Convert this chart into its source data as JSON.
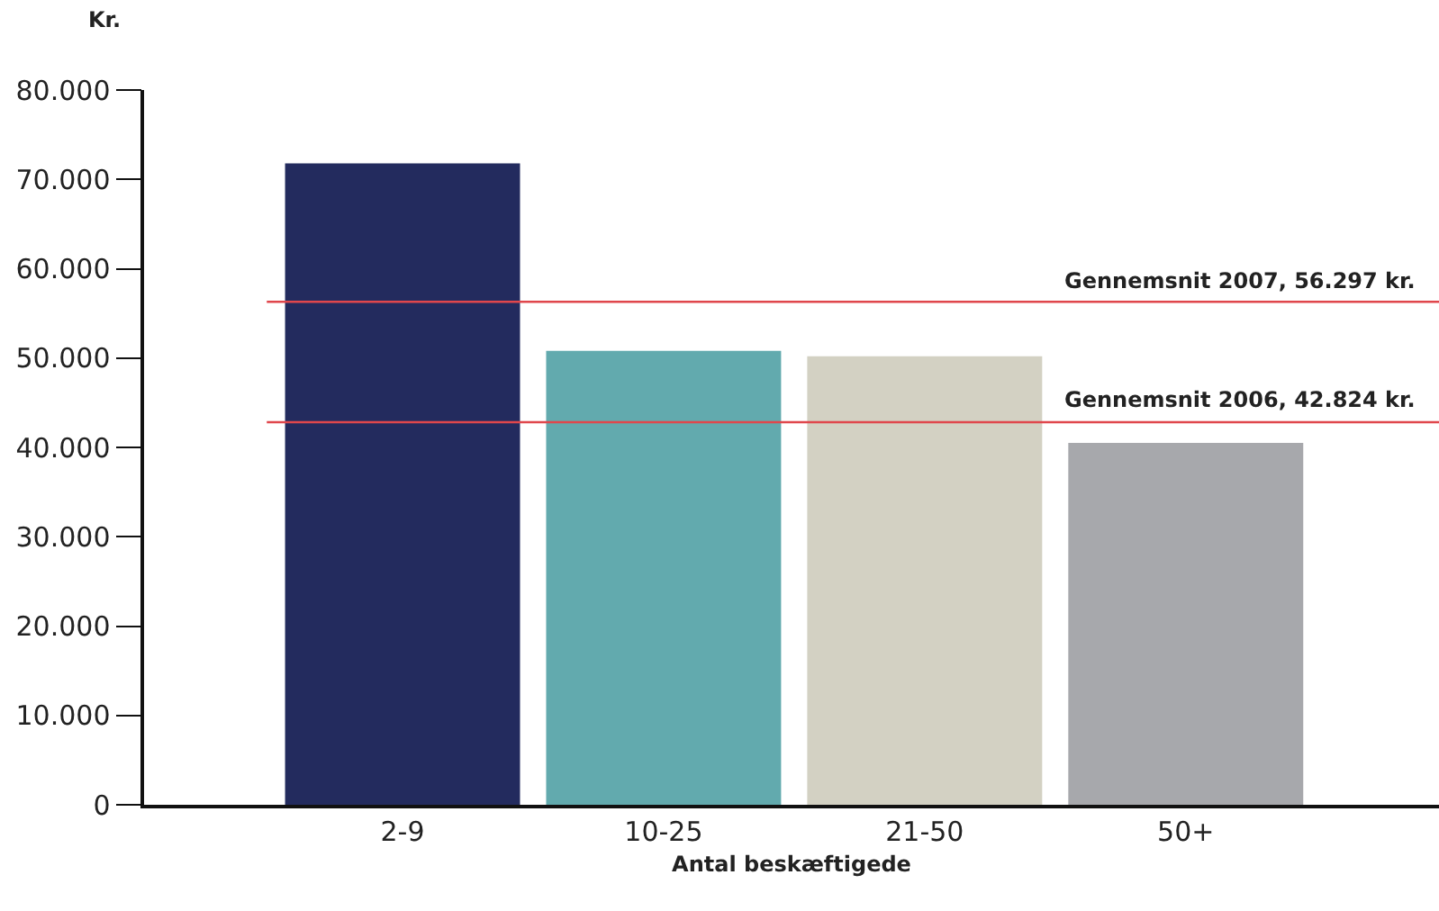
{
  "chart_data": {
    "type": "bar",
    "ylabel": "Kr.",
    "xlabel": "Antal beskæftigede",
    "categories": [
      "2-9",
      "10-25",
      "21-50",
      "50+"
    ],
    "values": [
      71800,
      50800,
      50200,
      40500
    ],
    "colors": [
      "#232b5e",
      "#62aaae",
      "#d3d1c3",
      "#a7a8ac"
    ],
    "ylim": [
      0,
      80000
    ],
    "yticks": [
      0,
      {
        "value": 10000,
        "label": "10.000"
      },
      {
        "value": 20000,
        "label": "20.000"
      },
      {
        "value": 30000,
        "label": "30.000"
      },
      {
        "value": 40000,
        "label": "40.000"
      },
      {
        "value": 50000,
        "label": "50.000"
      },
      {
        "value": 60000,
        "label": "60.000"
      },
      {
        "value": 70000,
        "label": "70.000"
      },
      {
        "value": 80000,
        "label": "80.000"
      }
    ],
    "ref_lines": [
      {
        "axis": "y",
        "value": 56297,
        "label": "Gennemsnit 2007, 56.297 kr.",
        "color": "#e0474c"
      },
      {
        "axis": "y",
        "value": 42824,
        "label": "Gennemsnit 2006, 42.824 kr.",
        "color": "#e0474c"
      }
    ],
    "grid": false
  }
}
